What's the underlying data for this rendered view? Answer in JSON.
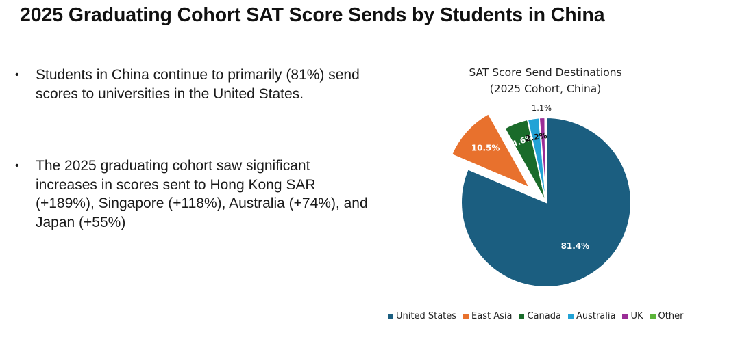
{
  "page": {
    "title": "2025 Graduating Cohort SAT Score Sends by Students in China"
  },
  "bullets": [
    {
      "bullet_char": "•",
      "text": "Students in China continue to primarily (81%) send scores to universities in the United States."
    },
    {
      "bullet_char": "•",
      "text": "The 2025 graduating cohort saw significant increases in scores sent to Hong Kong SAR (+189%), Singapore (+118%), Australia (+74%), and Japan (+55%)"
    }
  ],
  "chart_data": {
    "type": "pie",
    "title": "SAT Score Send Destinations",
    "subtitle": "(2025 Cohort, China)",
    "start_angle_deg": 0,
    "direction": "clockwise",
    "exploded": [
      "East Asia"
    ],
    "legend_position": "bottom",
    "slices": [
      {
        "label": "United States",
        "value": 81.4,
        "display": "81.4%",
        "color": "#1b5e80"
      },
      {
        "label": "East Asia",
        "value": 10.5,
        "display": "10.5%",
        "color": "#e8712d"
      },
      {
        "label": "Canada",
        "value": 4.6,
        "display": "4.6%",
        "color": "#1a6b2a"
      },
      {
        "label": "Australia",
        "value": 2.2,
        "display": "2.2%",
        "color": "#22a3d6"
      },
      {
        "label": "UK",
        "value": 1.1,
        "display": "1.1%",
        "color": "#9a2d96"
      },
      {
        "label": "Other",
        "value": 0.2,
        "display": "",
        "color": "#5cb53a"
      }
    ]
  }
}
